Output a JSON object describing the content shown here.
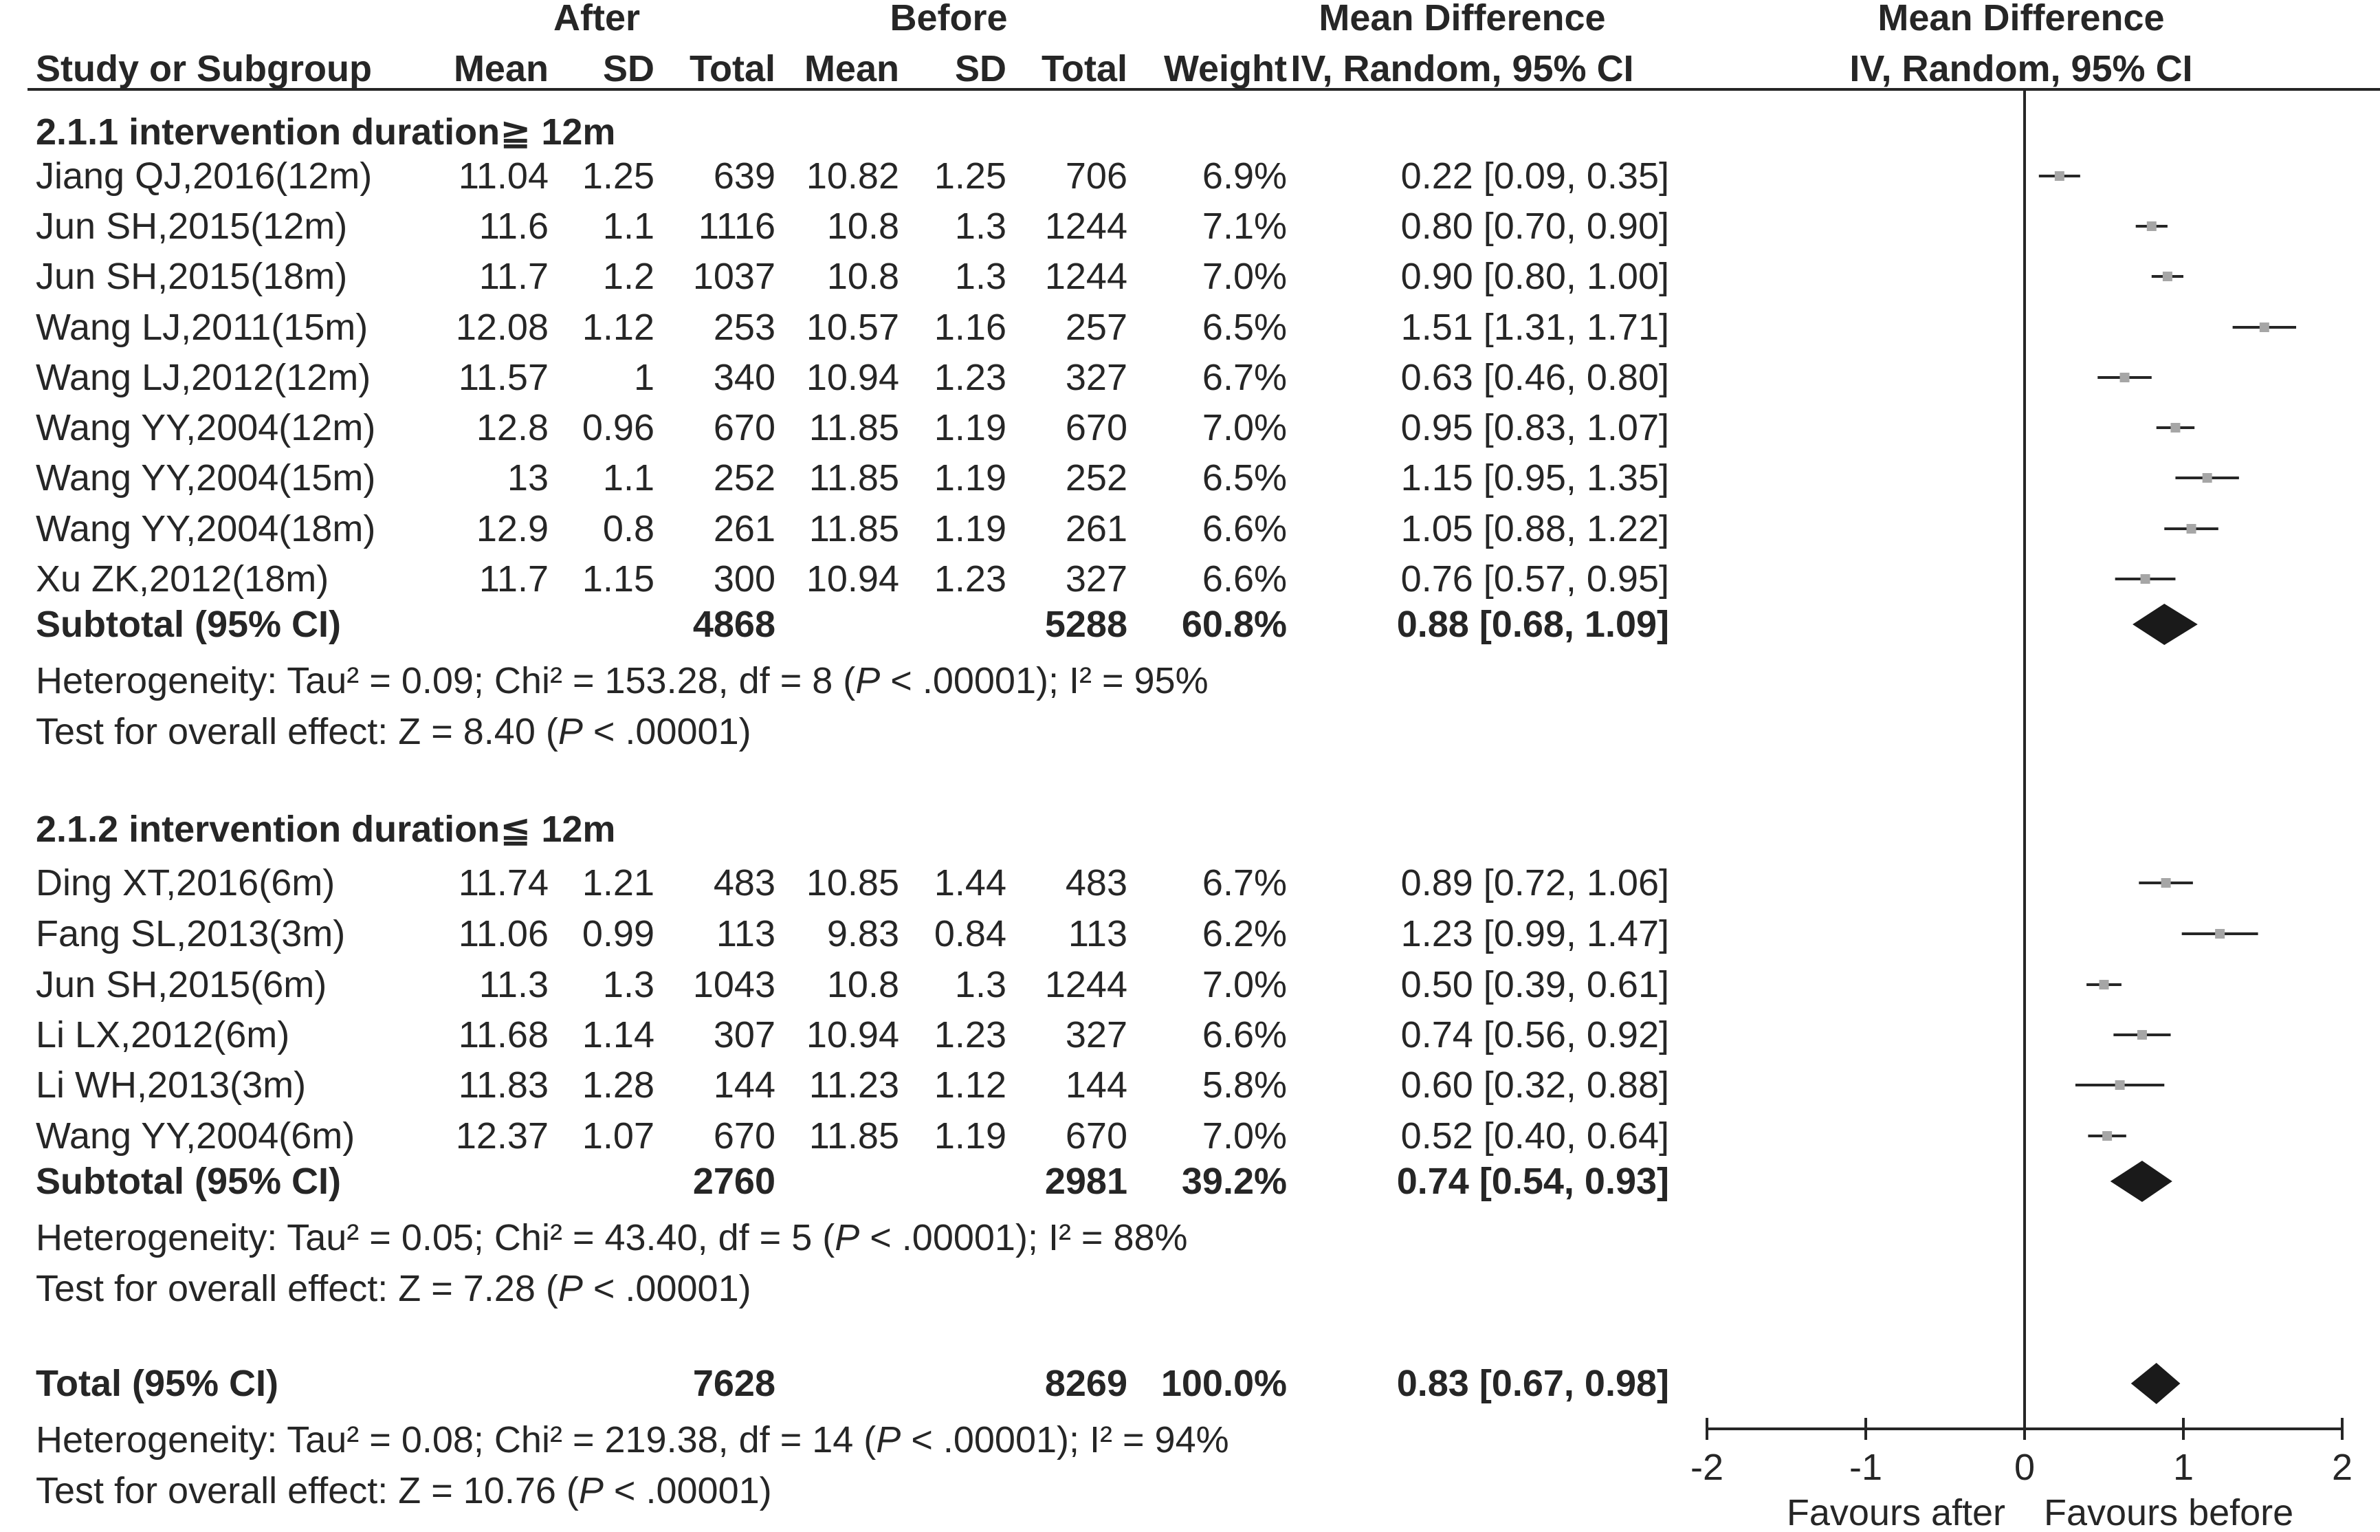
{
  "chart_data": {
    "type": "forest",
    "headers": {
      "group_after": "After",
      "group_before": "Before",
      "effect_label": "Mean Difference",
      "study_col": "Study or Subgroup",
      "mean": "Mean",
      "sd": "SD",
      "total": "Total",
      "weight": "Weight",
      "ci_col": "IV, Random, 95% CI",
      "plot_title": "Mean Difference",
      "plot_subtitle": "IV, Random, 95% CI"
    },
    "subgroups": [
      {
        "title": "2.1.1 intervention duration≧ 12m",
        "studies": [
          {
            "name": "Jiang  QJ,2016(12m)",
            "after_mean": "11.04",
            "after_sd": "1.25",
            "after_total": "639",
            "before_mean": "10.82",
            "before_sd": "1.25",
            "before_total": "706",
            "weight": "6.9%",
            "ci_text": "0.22 [0.09, 0.35]",
            "md": 0.22,
            "lo": 0.09,
            "hi": 0.35
          },
          {
            "name": "Jun SH,2015(12m)",
            "after_mean": "11.6",
            "after_sd": "1.1",
            "after_total": "1116",
            "before_mean": "10.8",
            "before_sd": "1.3",
            "before_total": "1244",
            "weight": "7.1%",
            "ci_text": "0.80 [0.70, 0.90]",
            "md": 0.8,
            "lo": 0.7,
            "hi": 0.9
          },
          {
            "name": "Jun SH,2015(18m)",
            "after_mean": "11.7",
            "after_sd": "1.2",
            "after_total": "1037",
            "before_mean": "10.8",
            "before_sd": "1.3",
            "before_total": "1244",
            "weight": "7.0%",
            "ci_text": "0.90 [0.80, 1.00]",
            "md": 0.9,
            "lo": 0.8,
            "hi": 1.0
          },
          {
            "name": "Wang LJ,2011(15m)",
            "after_mean": "12.08",
            "after_sd": "1.12",
            "after_total": "253",
            "before_mean": "10.57",
            "before_sd": "1.16",
            "before_total": "257",
            "weight": "6.5%",
            "ci_text": "1.51 [1.31, 1.71]",
            "md": 1.51,
            "lo": 1.31,
            "hi": 1.71
          },
          {
            "name": "Wang LJ,2012(12m)",
            "after_mean": "11.57",
            "after_sd": "1",
            "after_total": "340",
            "before_mean": "10.94",
            "before_sd": "1.23",
            "before_total": "327",
            "weight": "6.7%",
            "ci_text": "0.63 [0.46, 0.80]",
            "md": 0.63,
            "lo": 0.46,
            "hi": 0.8
          },
          {
            "name": "Wang YY,2004(12m)",
            "after_mean": "12.8",
            "after_sd": "0.96",
            "after_total": "670",
            "before_mean": "11.85",
            "before_sd": "1.19",
            "before_total": "670",
            "weight": "7.0%",
            "ci_text": "0.95 [0.83, 1.07]",
            "md": 0.95,
            "lo": 0.83,
            "hi": 1.07
          },
          {
            "name": "Wang YY,2004(15m)",
            "after_mean": "13",
            "after_sd": "1.1",
            "after_total": "252",
            "before_mean": "11.85",
            "before_sd": "1.19",
            "before_total": "252",
            "weight": "6.5%",
            "ci_text": "1.15 [0.95, 1.35]",
            "md": 1.15,
            "lo": 0.95,
            "hi": 1.35
          },
          {
            "name": "Wang YY,2004(18m)",
            "after_mean": "12.9",
            "after_sd": "0.8",
            "after_total": "261",
            "before_mean": "11.85",
            "before_sd": "1.19",
            "before_total": "261",
            "weight": "6.6%",
            "ci_text": "1.05 [0.88, 1.22]",
            "md": 1.05,
            "lo": 0.88,
            "hi": 1.22
          },
          {
            "name": "Xu ZK,2012(18m)",
            "after_mean": "11.7",
            "after_sd": "1.15",
            "after_total": "300",
            "before_mean": "10.94",
            "before_sd": "1.23",
            "before_total": "327",
            "weight": "6.6%",
            "ci_text": "0.76 [0.57, 0.95]",
            "md": 0.76,
            "lo": 0.57,
            "hi": 0.95
          }
        ],
        "subtotal": {
          "label": "Subtotal (95% CI)",
          "after_total": "4868",
          "before_total": "5288",
          "weight": "60.8%",
          "ci_text": "0.88 [0.68, 1.09]",
          "md": 0.88,
          "lo": 0.68,
          "hi": 1.09
        },
        "heterogeneity": [
          "Heterogeneity: Tau² = 0.09; Chi² = 153.28, df = 8 (",
          "P",
          " < .00001); I² = 95%"
        ],
        "overall": [
          "Test for overall effect: Z = 8.40 (",
          "P",
          " < .00001)"
        ]
      },
      {
        "title": "2.1.2 intervention duration≦ 12m",
        "studies": [
          {
            "name": "Ding XT,2016(6m)",
            "after_mean": "11.74",
            "after_sd": "1.21",
            "after_total": "483",
            "before_mean": "10.85",
            "before_sd": "1.44",
            "before_total": "483",
            "weight": "6.7%",
            "ci_text": "0.89 [0.72, 1.06]",
            "md": 0.89,
            "lo": 0.72,
            "hi": 1.06
          },
          {
            "name": "Fang SL,2013(3m)",
            "after_mean": "11.06",
            "after_sd": "0.99",
            "after_total": "113",
            "before_mean": "9.83",
            "before_sd": "0.84",
            "before_total": "113",
            "weight": "6.2%",
            "ci_text": "1.23 [0.99, 1.47]",
            "md": 1.23,
            "lo": 0.99,
            "hi": 1.47
          },
          {
            "name": "Jun SH,2015(6m)",
            "after_mean": "11.3",
            "after_sd": "1.3",
            "after_total": "1043",
            "before_mean": "10.8",
            "before_sd": "1.3",
            "before_total": "1244",
            "weight": "7.0%",
            "ci_text": "0.50 [0.39, 0.61]",
            "md": 0.5,
            "lo": 0.39,
            "hi": 0.61
          },
          {
            "name": "Li LX,2012(6m)",
            "after_mean": "11.68",
            "after_sd": "1.14",
            "after_total": "307",
            "before_mean": "10.94",
            "before_sd": "1.23",
            "before_total": "327",
            "weight": "6.6%",
            "ci_text": "0.74 [0.56, 0.92]",
            "md": 0.74,
            "lo": 0.56,
            "hi": 0.92
          },
          {
            "name": "Li WH,2013(3m)",
            "after_mean": "11.83",
            "after_sd": "1.28",
            "after_total": "144",
            "before_mean": "11.23",
            "before_sd": "1.12",
            "before_total": "144",
            "weight": "5.8%",
            "ci_text": "0.60 [0.32, 0.88]",
            "md": 0.6,
            "lo": 0.32,
            "hi": 0.88
          },
          {
            "name": "Wang YY,2004(6m)",
            "after_mean": "12.37",
            "after_sd": "1.07",
            "after_total": "670",
            "before_mean": "11.85",
            "before_sd": "1.19",
            "before_total": "670",
            "weight": "7.0%",
            "ci_text": "0.52 [0.40, 0.64]",
            "md": 0.52,
            "lo": 0.4,
            "hi": 0.64
          }
        ],
        "subtotal": {
          "label": "Subtotal (95% CI)",
          "after_total": "2760",
          "before_total": "2981",
          "weight": "39.2%",
          "ci_text": "0.74 [0.54, 0.93]",
          "md": 0.74,
          "lo": 0.54,
          "hi": 0.93
        },
        "heterogeneity": [
          "Heterogeneity: Tau² = 0.05; Chi² = 43.40, df = 5 (",
          "P",
          " < .00001); I² = 88%"
        ],
        "overall": [
          "Test for overall effect: Z = 7.28 (",
          "P",
          " < .00001)"
        ]
      }
    ],
    "total": {
      "label": "Total (95% CI)",
      "after_total": "7628",
      "before_total": "8269",
      "weight": "100.0%",
      "ci_text": "0.83 [0.67, 0.98]",
      "md": 0.83,
      "lo": 0.67,
      "hi": 0.98,
      "heterogeneity": [
        "Heterogeneity: Tau² = 0.08; Chi² = 219.38, df = 14 (",
        "P",
        " < .00001); I² = 94%"
      ],
      "overall": [
        "Test for overall effect: Z = 10.76 (",
        "P",
        " < .00001)"
      ]
    },
    "x_axis": {
      "range": [
        -2,
        2
      ],
      "ticks": [
        -2,
        -1,
        0,
        1,
        2
      ],
      "tick_labels": [
        "-2",
        "-1",
        "0",
        "1",
        "2"
      ],
      "label_left": "Favours after",
      "label_right": "Favours before"
    },
    "colors": {
      "text": "#262626",
      "square": "#a6a6a6",
      "diamond": "#1a1a1a",
      "line": "#262626"
    }
  }
}
